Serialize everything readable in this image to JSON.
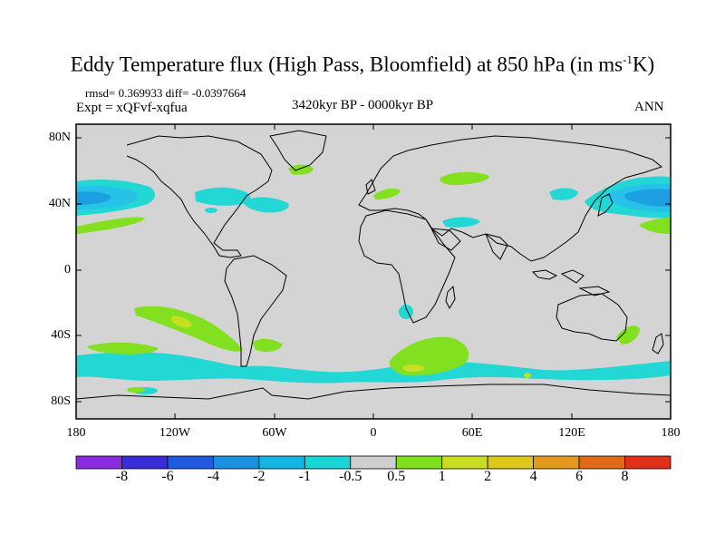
{
  "header": {
    "title_main": "Eddy Temperature flux (High Pass, Bloomfield) at 850 hPa (in ms",
    "title_sup": "-1",
    "title_end": "K)",
    "stats": "rmsd= 0.369933 diff= -0.0397664",
    "expt": "Expt = xQFvf-xqfua",
    "period": "3420kyr BP - 0000kyr BP",
    "season": "ANN"
  },
  "axes": {
    "lat_labels": [
      "80N",
      "40N",
      "0",
      "40S",
      "80S"
    ],
    "lon_labels": [
      "180",
      "120W",
      "60W",
      "0",
      "60E",
      "120E",
      "180"
    ]
  },
  "colorbar": {
    "labels": [
      "-8",
      "-6",
      "-4",
      "-2",
      "-1",
      "-0.5",
      "0.5",
      "1",
      "2",
      "4",
      "6",
      "8"
    ],
    "colors": [
      "#8a2be2",
      "#3a2cd8",
      "#1f5ae0",
      "#1b8fe0",
      "#13b4e6",
      "#19d6d6",
      "#cfcfcf",
      "#80e01c",
      "#c7df20",
      "#e0c81a",
      "#e39a1a",
      "#e06a16",
      "#e0301a"
    ]
  },
  "style": {
    "land_gray": "#d4d4d4",
    "cyan": "#22d7d4",
    "light_blue": "#27c2e8",
    "mid_blue": "#1da0e2",
    "green": "#82e020",
    "yellow_green": "#c6df22"
  }
}
